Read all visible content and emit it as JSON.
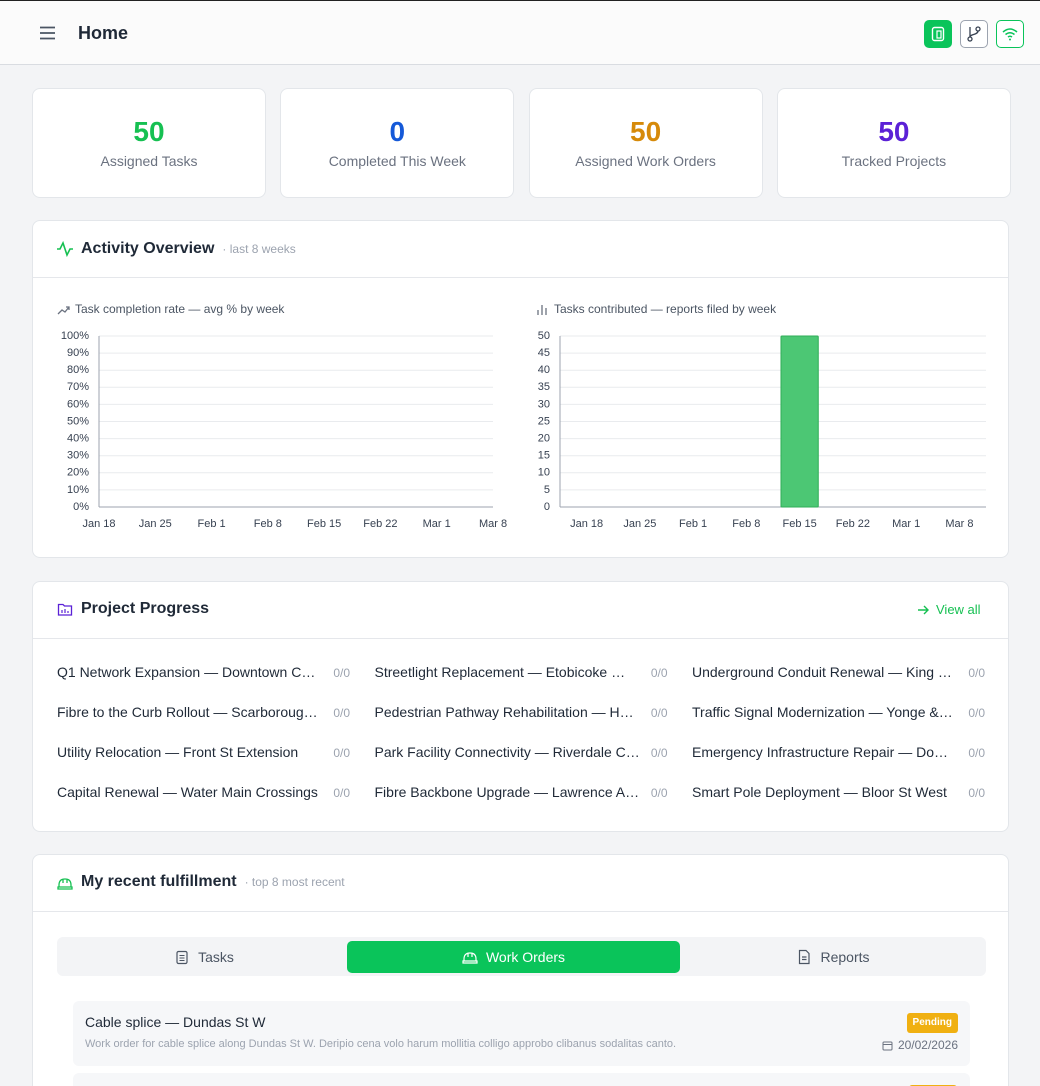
{
  "header": {
    "title": "Home"
  },
  "stats": [
    {
      "value": 50,
      "label": "Assigned Tasks",
      "color": "#16c052"
    },
    {
      "value": 0,
      "label": "Completed This Week",
      "color": "#1559d8"
    },
    {
      "value": 50,
      "label": "Assigned Work Orders",
      "color": "#d68a0a"
    },
    {
      "value": 50,
      "label": "Tracked Projects",
      "color": "#5b21d6"
    }
  ],
  "activity": {
    "title": "Activity Overview",
    "subtitle": "· last 8 weeks"
  },
  "chart_data": [
    {
      "type": "line",
      "title": "Task completion rate — avg % by week",
      "categories": [
        "Jan 18",
        "Jan 25",
        "Feb 1",
        "Feb 8",
        "Feb 15",
        "Feb 22",
        "Mar 1",
        "Mar 8"
      ],
      "values": [
        null,
        null,
        null,
        null,
        null,
        null,
        null,
        null
      ],
      "color": "#16c052",
      "ylim": [
        0,
        100
      ],
      "yticks": [
        {
          "value": 0,
          "label": "0%"
        },
        {
          "value": 10,
          "label": "10%"
        },
        {
          "value": 20,
          "label": "20%"
        },
        {
          "value": 30,
          "label": "30%"
        },
        {
          "value": 40,
          "label": "40%"
        },
        {
          "value": 50,
          "label": "50%"
        },
        {
          "value": 60,
          "label": "60%"
        },
        {
          "value": 70,
          "label": "70%"
        },
        {
          "value": 80,
          "label": "80%"
        },
        {
          "value": 90,
          "label": "90%"
        },
        {
          "value": 100,
          "label": "100%"
        }
      ],
      "grid": true
    },
    {
      "type": "bar",
      "title": "Tasks contributed — reports filed by week",
      "categories": [
        "Jan 18",
        "Jan 25",
        "Feb 1",
        "Feb 8",
        "Feb 15",
        "Feb 22",
        "Mar 1",
        "Mar 8"
      ],
      "values": [
        0,
        0,
        0,
        0,
        50,
        0,
        0,
        0
      ],
      "color": "#4cc774",
      "ylim": [
        0,
        50
      ],
      "yticks": [
        0,
        5,
        10,
        15,
        20,
        25,
        30,
        35,
        40,
        45,
        50
      ],
      "grid": true
    }
  ],
  "projects": {
    "title": "Project Progress",
    "link": "View all",
    "items": [
      {
        "name": "Q1 Network Expansion — Downtown C…",
        "progress": "0/0"
      },
      {
        "name": "Streetlight Replacement — Etobicoke …",
        "progress": "0/0"
      },
      {
        "name": "Underground Conduit Renewal — King …",
        "progress": "0/0"
      },
      {
        "name": "Fibre to the Curb Rollout — Scarboroug…",
        "progress": "0/0"
      },
      {
        "name": "Pedestrian Pathway Rehabilitation — H…",
        "progress": "0/0"
      },
      {
        "name": "Traffic Signal Modernization — Yonge &…",
        "progress": "0/0"
      },
      {
        "name": "Utility Relocation — Front St Extension",
        "progress": "0/0"
      },
      {
        "name": "Park Facility Connectivity — Riverdale C…",
        "progress": "0/0"
      },
      {
        "name": "Emergency Infrastructure Repair — Do…",
        "progress": "0/0"
      },
      {
        "name": "Capital Renewal — Water Main Crossings",
        "progress": "0/0"
      },
      {
        "name": "Fibre Backbone Upgrade — Lawrence A…",
        "progress": "0/0"
      },
      {
        "name": "Smart Pole Deployment — Bloor St West",
        "progress": "0/0"
      }
    ]
  },
  "fulfillment": {
    "title": "My recent fulfillment",
    "subtitle": "· top 8 most recent",
    "tabs": [
      "Tasks",
      "Work Orders",
      "Reports"
    ],
    "active_tab": 1,
    "items": [
      {
        "title": "Cable splice — Dundas St W",
        "description": "Work order for cable splice along Dundas St W. Deripio cena volo harum mollitia colligo approbo clibanus sodalitas canto.",
        "status": "Pending",
        "date": "20/02/2026"
      }
    ]
  }
}
